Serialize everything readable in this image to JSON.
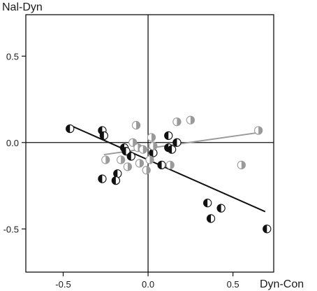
{
  "chart_data": {
    "type": "scatter",
    "ylabel": "Nal-Dyn",
    "xlabel": "Dyn-Con",
    "xlim": [
      -0.72,
      0.74
    ],
    "ylim": [
      -0.75,
      0.74
    ],
    "x_ticks": [
      -0.5,
      0.0,
      0.5
    ],
    "y_ticks": [
      -0.5,
      0.0,
      0.5
    ],
    "x_tick_labels": [
      "-0.5",
      "0.0",
      "0.5"
    ],
    "y_tick_labels": [
      "-0.5",
      "0.0",
      "0.5"
    ],
    "grid": false,
    "zero_lines": true,
    "series": [
      {
        "color": "#111111",
        "marker": "half-filled-left",
        "points": [
          {
            "x": -0.46,
            "y": 0.08
          },
          {
            "x": -0.27,
            "y": 0.07
          },
          {
            "x": -0.26,
            "y": 0.04
          },
          {
            "x": -0.27,
            "y": -0.21
          },
          {
            "x": -0.18,
            "y": -0.18
          },
          {
            "x": -0.19,
            "y": -0.22
          },
          {
            "x": -0.14,
            "y": -0.03
          },
          {
            "x": -0.13,
            "y": -0.05
          },
          {
            "x": -0.1,
            "y": -0.08
          },
          {
            "x": 0.03,
            "y": -0.06
          },
          {
            "x": 0.08,
            "y": -0.13
          },
          {
            "x": 0.12,
            "y": 0.04
          },
          {
            "x": 0.12,
            "y": -0.03
          },
          {
            "x": 0.14,
            "y": -0.04
          },
          {
            "x": 0.17,
            "y": 0.0
          },
          {
            "x": 0.35,
            "y": -0.35
          },
          {
            "x": 0.37,
            "y": -0.44
          },
          {
            "x": 0.43,
            "y": -0.38
          },
          {
            "x": 0.7,
            "y": -0.5
          }
        ],
        "trendline": {
          "x": [
            -0.46,
            0.69
          ],
          "y": [
            0.1,
            -0.4
          ]
        }
      },
      {
        "color": "#9a9a9a",
        "marker": "half-filled-right",
        "points": [
          {
            "x": -0.25,
            "y": -0.1
          },
          {
            "x": -0.16,
            "y": -0.1
          },
          {
            "x": -0.12,
            "y": -0.14
          },
          {
            "x": -0.09,
            "y": 0.0
          },
          {
            "x": -0.07,
            "y": 0.1
          },
          {
            "x": -0.06,
            "y": -0.03
          },
          {
            "x": -0.05,
            "y": -0.12
          },
          {
            "x": -0.03,
            "y": -0.04
          },
          {
            "x": -0.01,
            "y": -0.16
          },
          {
            "x": 0.01,
            "y": -0.1
          },
          {
            "x": 0.02,
            "y": 0.03
          },
          {
            "x": 0.03,
            "y": -0.02
          },
          {
            "x": 0.13,
            "y": -0.13
          },
          {
            "x": 0.17,
            "y": 0.12
          },
          {
            "x": 0.25,
            "y": 0.13
          },
          {
            "x": 0.55,
            "y": -0.13
          },
          {
            "x": 0.65,
            "y": 0.07
          }
        ],
        "trendline": {
          "x": [
            -0.26,
            0.67
          ],
          "y": [
            -0.07,
            0.06
          ]
        }
      }
    ]
  }
}
